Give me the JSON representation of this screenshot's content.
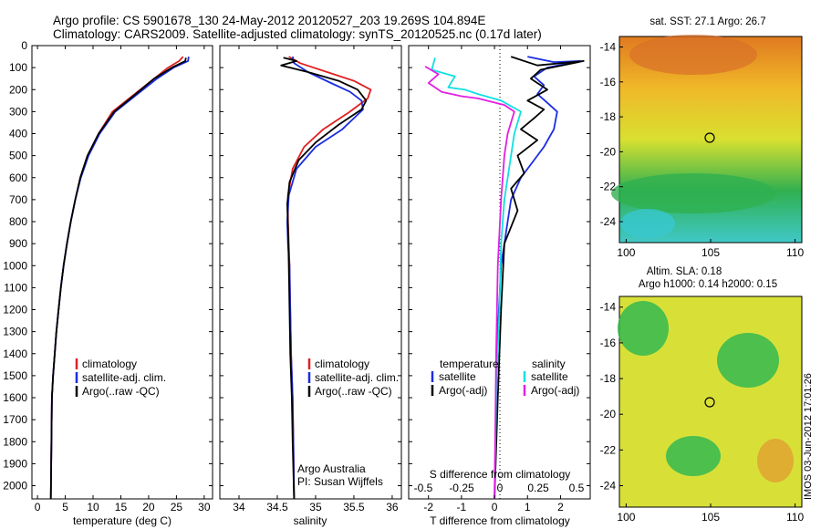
{
  "header": {
    "title_line1": "Argo profile: CS 5901678_130 24-May-2012 20120527_203 19.269S 104.894E",
    "title_line2": "Climatology: CARS2009. Satellite-adjusted climatology: synTS_20120525.nc (0.17d later)"
  },
  "colors": {
    "climatology": "#e02020",
    "satellite": "#1a2de0",
    "argo": "#000000",
    "satellite_salinity": "#10e0e0",
    "argo_salinity": "#e020e0"
  },
  "depth_axis": {
    "ticks": [
      "0",
      "100",
      "200",
      "300",
      "400",
      "500",
      "600",
      "700",
      "800",
      "900",
      "1000",
      "1100",
      "1200",
      "1300",
      "1400",
      "1500",
      "1600",
      "1700",
      "1800",
      "1900",
      "2000"
    ]
  },
  "temp_panel": {
    "xlabel": "temperature (deg C)",
    "xticks": [
      "0",
      "5",
      "10",
      "15",
      "20",
      "25",
      "30"
    ],
    "legend": [
      "climatology",
      "satellite-adj. clim.",
      "Argo(..raw -QC)"
    ]
  },
  "sal_panel": {
    "xlabel": "salinity",
    "xticks": [
      "34",
      "34.5",
      "35",
      "35.5",
      "36"
    ],
    "legend": [
      "climatology",
      "satellite-adj. clim.",
      "Argo(..raw -QC)"
    ],
    "credit1": "Argo Australia",
    "credit2": "PI: Susan Wijffels"
  },
  "diff_panel": {
    "xlabel": "T difference from climatology",
    "top_label": "S difference from climatology",
    "xticks_T": [
      "-2",
      "-1",
      "0",
      "1",
      "2"
    ],
    "xticks_S": [
      "-0.5",
      "-0.25",
      "0",
      "0.25",
      "0.5"
    ],
    "legend_t_title": "temperature",
    "legend_s_title": "salinity",
    "legend_t": [
      "satellite",
      "Argo(-adj)"
    ],
    "legend_s": [
      "satellite",
      "Argo(-adj)"
    ]
  },
  "map1": {
    "title": "sat. SST: 27.1  Argo: 26.7",
    "yticks": [
      "-14",
      "-16",
      "-18",
      "-20",
      "-22",
      "-24"
    ],
    "xticks": [
      "100",
      "105",
      "110"
    ]
  },
  "map2": {
    "title_line1": "Altim. SLA: 0.18",
    "title_line2": "Argo h1000: 0.14  h2000: 0.15",
    "yticks": [
      "-14",
      "-16",
      "-18",
      "-20",
      "-22",
      "-24"
    ],
    "xticks": [
      "100",
      "105",
      "110"
    ]
  },
  "stamp": "IMOS 03-Jun-2012 17:01:26",
  "chart_data": [
    {
      "type": "line",
      "title": "",
      "xlabel": "temperature (deg C)",
      "ylabel": "",
      "xlim": [
        -1,
        31.5
      ],
      "ylim": [
        2060,
        0
      ],
      "series": [
        {
          "name": "climatology",
          "color": "#e02020",
          "x": [
            26.2,
            25.5,
            23.5,
            21,
            17,
            13.5,
            11,
            9,
            7.7,
            6.8,
            6.0,
            5.3,
            4.7,
            4.2,
            3.8,
            3.4,
            3.1,
            2.8,
            2.6,
            2.4
          ],
          "y": [
            50,
            70,
            100,
            150,
            230,
            300,
            400,
            500,
            600,
            700,
            800,
            900,
            1000,
            1100,
            1200,
            1300,
            1400,
            1500,
            1600,
            2060
          ]
        },
        {
          "name": "satellite-adj. clim.",
          "color": "#1a2de0",
          "x": [
            27.2,
            27.1,
            24.5,
            21.5,
            17.5,
            14,
            11.2,
            9.2,
            7.8,
            6.8,
            6.0,
            5.3,
            4.7,
            4.2,
            3.8,
            3.4,
            3.1,
            2.8,
            2.6,
            2.4
          ],
          "y": [
            50,
            70,
            100,
            150,
            230,
            300,
            400,
            500,
            600,
            700,
            800,
            900,
            1000,
            1100,
            1200,
            1300,
            1400,
            1500,
            1600,
            2060
          ]
        },
        {
          "name": "Argo(..raw -QC)",
          "color": "#000000",
          "x": [
            26.7,
            26.6,
            24.2,
            21,
            17.2,
            13.8,
            11,
            9,
            7.7,
            6.8,
            6.0,
            5.3,
            4.7,
            4.2,
            3.8,
            3.4,
            3.1,
            2.8,
            2.6,
            2.4
          ],
          "y": [
            55,
            70,
            100,
            150,
            230,
            300,
            400,
            500,
            600,
            700,
            800,
            900,
            1000,
            1100,
            1200,
            1300,
            1400,
            1500,
            1600,
            2060
          ]
        }
      ]
    },
    {
      "type": "line",
      "title": "",
      "xlabel": "salinity",
      "ylabel": "",
      "xlim": [
        33.75,
        36.12
      ],
      "ylim": [
        2060,
        0
      ],
      "series": [
        {
          "name": "climatology",
          "color": "#e02020",
          "x": [
            34.65,
            34.8,
            35.15,
            35.5,
            35.72,
            35.68,
            35.45,
            35.1,
            34.85,
            34.7,
            34.64,
            34.64,
            34.65,
            34.66,
            34.67,
            34.68,
            34.7,
            34.71,
            34.72
          ],
          "y": [
            50,
            80,
            120,
            160,
            200,
            240,
            300,
            380,
            460,
            560,
            680,
            800,
            900,
            1000,
            1200,
            1400,
            1600,
            1800,
            2060
          ]
        },
        {
          "name": "satellite-adj. clim.",
          "color": "#1a2de0",
          "x": [
            34.7,
            34.72,
            34.9,
            35.2,
            35.45,
            35.6,
            35.62,
            35.35,
            35.0,
            34.75,
            34.65,
            34.63,
            34.64,
            34.66,
            34.67,
            34.68,
            34.7,
            34.71,
            34.72
          ],
          "y": [
            50,
            80,
            120,
            170,
            210,
            250,
            290,
            380,
            460,
            560,
            680,
            800,
            900,
            1000,
            1200,
            1400,
            1600,
            1800,
            2060
          ]
        },
        {
          "name": "Argo(..raw -QC)",
          "color": "#000000",
          "x": [
            34.58,
            34.75,
            34.55,
            34.9,
            35.3,
            35.55,
            35.66,
            35.6,
            35.3,
            35.0,
            34.78,
            34.66,
            34.63,
            34.64,
            34.65,
            34.66,
            34.67,
            34.69,
            34.7,
            34.72
          ],
          "y": [
            55,
            70,
            90,
            120,
            160,
            200,
            250,
            290,
            360,
            440,
            520,
            620,
            720,
            820,
            1000,
            1200,
            1400,
            1600,
            1800,
            2060
          ]
        }
      ]
    },
    {
      "type": "line",
      "title": "",
      "xlabel": "T difference from climatology",
      "ylabel": "",
      "xlim": [
        -2.6,
        2.9
      ],
      "ylim": [
        2060,
        0
      ],
      "series": [
        {
          "name": "satellite",
          "color": "#1a2de0",
          "x": [
            1.0,
            1.8,
            2.6,
            1.6,
            1.2,
            1.5,
            1.3,
            1.6,
            1.9,
            1.8,
            1.5,
            1.2,
            0.8,
            0.5,
            0.4,
            0.2,
            0.1,
            0.05,
            0.0
          ],
          "y": [
            50,
            75,
            70,
            100,
            140,
            180,
            220,
            260,
            300,
            380,
            460,
            520,
            600,
            700,
            800,
            1000,
            1300,
            1600,
            2060
          ]
        },
        {
          "name": "Argo(-adj)",
          "color": "#000000",
          "x": [
            0.5,
            1.3,
            2.7,
            1.4,
            1.1,
            1.6,
            1.0,
            1.5,
            1.2,
            0.8,
            1.3,
            0.7,
            0.9,
            0.5,
            0.7,
            0.3,
            0.2,
            0.1,
            0.0
          ],
          "y": [
            50,
            90,
            70,
            110,
            150,
            200,
            250,
            290,
            330,
            380,
            430,
            500,
            580,
            650,
            750,
            900,
            1200,
            1600,
            2060
          ]
        },
        {
          "name": "satellite S",
          "color": "#10e0e0",
          "x": [
            -1.8,
            -1.9,
            -1.2,
            -1.4,
            -0.9,
            -0.5,
            0.2,
            0.8,
            0.6,
            0.5,
            0.3,
            0.2,
            0.15,
            0.05,
            0.0
          ],
          "y": [
            55,
            110,
            140,
            190,
            200,
            220,
            250,
            300,
            400,
            500,
            700,
            900,
            1200,
            1600,
            2060
          ]
        },
        {
          "name": "Argo(-adj) S",
          "color": "#e020e0",
          "x": [
            -2.1,
            -1.7,
            -2.0,
            -1.6,
            -1.0,
            -0.5,
            0.3,
            0.6,
            0.4,
            0.3,
            0.2,
            0.1,
            0.05,
            0.0
          ],
          "y": [
            95,
            130,
            170,
            210,
            230,
            240,
            270,
            300,
            400,
            500,
            700,
            1000,
            1400,
            2060
          ]
        }
      ]
    }
  ]
}
